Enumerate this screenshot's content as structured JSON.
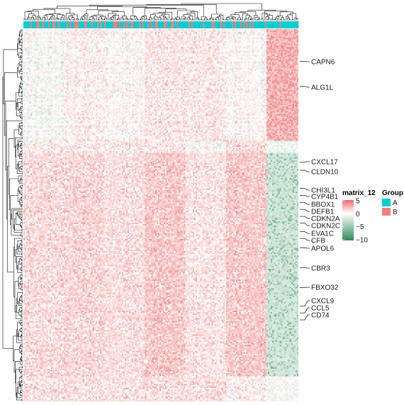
{
  "chart_data": {
    "type": "heatmap",
    "title": "",
    "xlabel": "",
    "ylabel": "",
    "n_samples": 190,
    "n_genes": 250,
    "genes_labeled": [
      "CAPN6",
      "ALG1L",
      "CXCL17",
      "CLDN10",
      "CHI3L1",
      "CYP4B1",
      "BBOX1",
      "DEFB1",
      "CDKN2A",
      "CDKN2C",
      "EVA1C",
      "CFB",
      "APOL6",
      "CBR3",
      "FBXO32",
      "CXCL9",
      "CCL5",
      "CD74"
    ],
    "group_annotation": {
      "name": "Group",
      "levels": [
        {
          "label": "A",
          "color": "#00CED1"
        },
        {
          "label": "B",
          "color": "#F08080"
        }
      ],
      "group_b_fraction_left_block": 0.3,
      "group_a_fraction_right_block": 0.12
    },
    "color_scale": {
      "name": "matrix_12",
      "ticks": [
        5,
        0,
        -5,
        -10
      ],
      "range": [
        -10,
        5
      ],
      "high_color": "#EE6B6B",
      "mid_color": "#FFFFFF",
      "low_color": "#2E8B57"
    },
    "legend_position": "right",
    "grid": false
  }
}
